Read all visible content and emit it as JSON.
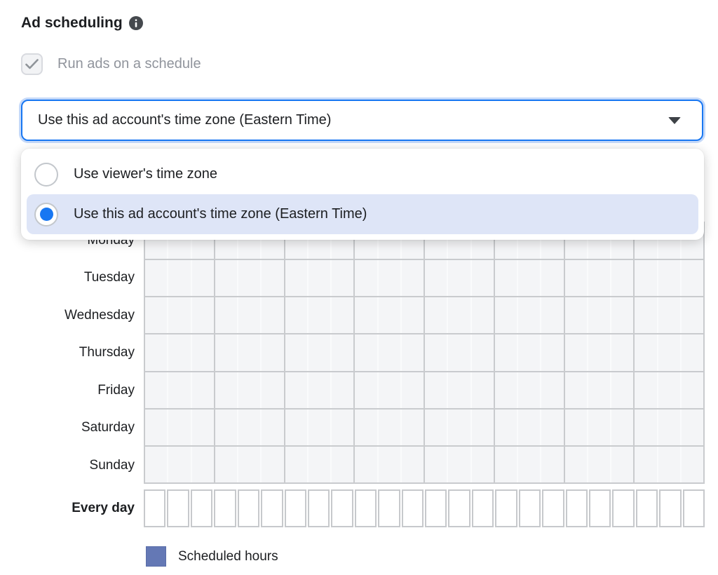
{
  "header": {
    "title": "Ad scheduling",
    "info_icon": "info-icon"
  },
  "schedule_checkbox": {
    "label": "Run ads on a schedule",
    "checked": true,
    "disabled": true
  },
  "timezone_select": {
    "value": "Use this ad account's time zone (Eastern Time)",
    "caret_icon": "chevron-down-icon"
  },
  "timezone_dropdown": {
    "options": [
      {
        "label": "Use viewer's time zone",
        "selected": false
      },
      {
        "label": "Use this ad account's time zone (Eastern Time)",
        "selected": true
      }
    ]
  },
  "schedule_grid": {
    "days": [
      "Monday",
      "Tuesday",
      "Wednesday",
      "Thursday",
      "Friday",
      "Saturday",
      "Sunday"
    ],
    "every_day_label": "Every day",
    "hours_per_day": 24,
    "hour_cells_selected": []
  },
  "legend": {
    "label": "Scheduled hours",
    "swatch_color": "#6478b5"
  },
  "colors": {
    "accent_blue": "#1877f2",
    "focus_ring": "#c5d9f9",
    "selected_option_bg": "#dee5f7",
    "grid_fill": "#f4f5f7",
    "grid_line_major": "#c9cbce",
    "grid_line_minor": "#fafbfc",
    "disabled_text": "#90949c",
    "text": "#1c1e21"
  }
}
